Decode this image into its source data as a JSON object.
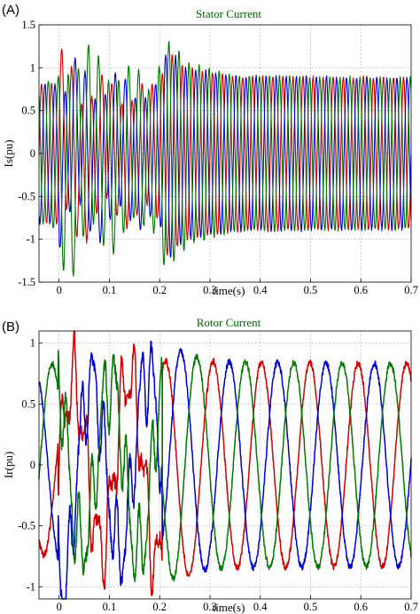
{
  "chart_data": [
    {
      "type": "line",
      "panel_label": "(A)",
      "title": "Stator Current",
      "xlabel": "time(s)",
      "ylabel": "Is(pu)",
      "xlim": [
        -0.04,
        0.7
      ],
      "ylim": [
        -1.5,
        1.5
      ],
      "xticks": [
        0,
        0.1,
        0.2,
        0.3,
        0.4,
        0.5,
        0.6,
        0.7
      ],
      "xtick_labels": [
        "0",
        "0.1",
        "0.2",
        "0.3",
        "0.4",
        "0.5",
        "0.6",
        "0.7"
      ],
      "yticks": [
        -1.5,
        -1,
        -0.5,
        0,
        0.5,
        1,
        1.5
      ],
      "ytick_labels": [
        "-1.5",
        "-1",
        "-0.5",
        "0",
        "0.5",
        "1",
        "1.5"
      ],
      "grid": true,
      "series": [
        {
          "color": "#cc0000",
          "phase_deg": 0,
          "envelope_t": [
            -0.04,
            0.0,
            0.012,
            0.05,
            0.1,
            0.19,
            0.2,
            0.215,
            0.25,
            0.35,
            0.7
          ],
          "envelope_a": [
            0.8,
            0.82,
            0.95,
            0.8,
            0.7,
            0.72,
            0.8,
            1.2,
            1.0,
            0.9,
            0.88
          ]
        },
        {
          "color": "#0000cc",
          "phase_deg": -120,
          "envelope_t": [
            -0.04,
            0.0,
            0.05,
            0.1,
            0.19,
            0.2,
            0.215,
            0.25,
            0.35,
            0.7
          ],
          "envelope_a": [
            0.82,
            0.8,
            0.85,
            0.8,
            0.72,
            0.8,
            1.25,
            1.0,
            0.9,
            0.88
          ]
        },
        {
          "color": "#007700",
          "phase_deg": 120,
          "envelope_t": [
            -0.04,
            0.0,
            0.01,
            0.05,
            0.1,
            0.19,
            0.205,
            0.22,
            0.26,
            0.35,
            0.7
          ],
          "envelope_a": [
            0.8,
            0.9,
            1.25,
            1.05,
            1.0,
            0.8,
            1.3,
            1.3,
            1.05,
            0.9,
            0.88
          ]
        }
      ]
    },
    {
      "type": "line",
      "panel_label": "(B)",
      "title": "Rotor Current",
      "xlabel": "time(s)",
      "ylabel": "Ir(pu)",
      "xlim": [
        -0.04,
        0.7
      ],
      "ylim": [
        -1.1,
        1.1
      ],
      "xticks": [
        0,
        0.1,
        0.2,
        0.3,
        0.4,
        0.5,
        0.6,
        0.7
      ],
      "xtick_labels": [
        "0",
        "0.1",
        "0.2",
        "0.3",
        "0.4",
        "0.5",
        "0.6",
        "0.7"
      ],
      "yticks": [
        -1,
        -0.5,
        0,
        0.5,
        1
      ],
      "ytick_labels": [
        "-1",
        "-0.5",
        "0",
        "0.5",
        "1"
      ],
      "grid": true,
      "series": [
        {
          "color": "#cc0000",
          "phase_deg": 0,
          "envelope_t": [
            -0.04,
            0.0,
            0.05,
            0.1,
            0.2,
            0.23,
            0.3,
            0.7
          ],
          "envelope_a": [
            0.75,
            0.7,
            0.65,
            0.7,
            0.8,
            0.95,
            0.85,
            0.83
          ]
        },
        {
          "color": "#0000cc",
          "phase_deg": -120,
          "envelope_t": [
            -0.04,
            0.0,
            0.01,
            0.05,
            0.1,
            0.2,
            0.23,
            0.3,
            0.7
          ],
          "envelope_a": [
            0.75,
            0.8,
            1.05,
            0.7,
            0.7,
            0.8,
            0.95,
            0.85,
            0.83
          ]
        },
        {
          "color": "#007700",
          "phase_deg": 120,
          "envelope_t": [
            -0.04,
            0.0,
            0.05,
            0.1,
            0.2,
            0.23,
            0.3,
            0.7
          ],
          "envelope_a": [
            0.8,
            0.85,
            0.65,
            0.7,
            0.8,
            0.95,
            0.85,
            0.83
          ]
        }
      ]
    }
  ]
}
